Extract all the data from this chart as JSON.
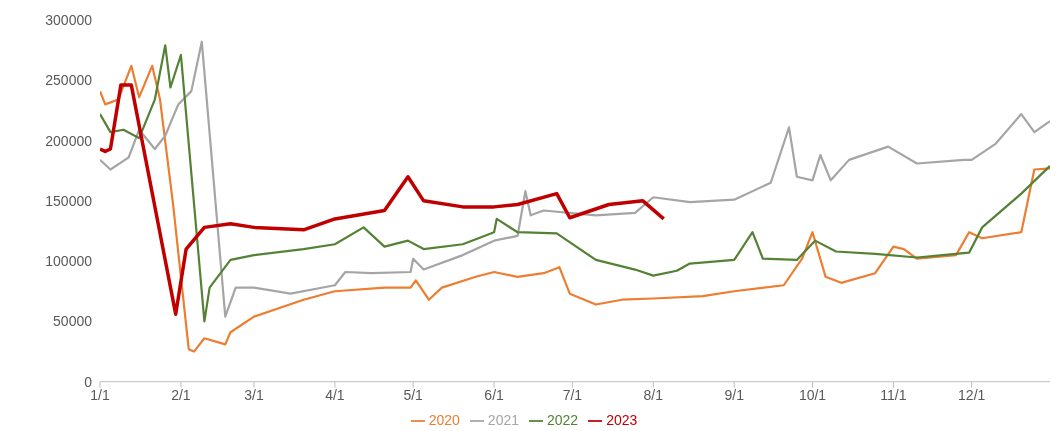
{
  "chart_data": {
    "type": "line",
    "legend": "bottom",
    "marker": "none",
    "line_style": "solid",
    "grid": false,
    "xlim": [
      "--01-01",
      "--12-31"
    ],
    "xticks": [
      {
        "value": "--01-01",
        "label": "1/1"
      },
      {
        "value": "--02-01",
        "label": "2/1"
      },
      {
        "value": "--03-01",
        "label": "3/1"
      },
      {
        "value": "--04-01",
        "label": "4/1"
      },
      {
        "value": "--05-01",
        "label": "5/1"
      },
      {
        "value": "--06-01",
        "label": "6/1"
      },
      {
        "value": "--07-01",
        "label": "7/1"
      },
      {
        "value": "--08-01",
        "label": "8/1"
      },
      {
        "value": "--09-01",
        "label": "9/1"
      },
      {
        "value": "--10-01",
        "label": "10/1"
      },
      {
        "value": "--11-01",
        "label": "11/1"
      },
      {
        "value": "--12-01",
        "label": "12/1"
      }
    ],
    "ylim": [
      0,
      300000
    ],
    "yticks": [
      0,
      50000,
      100000,
      150000,
      200000,
      250000,
      300000
    ],
    "series": [
      {
        "name": "2020",
        "color": "#ed7d31",
        "x": [
          "--01-01",
          "--01-03",
          "--01-08",
          "--01-13",
          "--01-16",
          "--01-21",
          "--01-24",
          "--01-29",
          "--02-04",
          "--02-06",
          "--02-10",
          "--02-18",
          "--02-20",
          "--03-01",
          "--03-20",
          "--04-01",
          "--04-20",
          "--04-30",
          "--05-02",
          "--05-07",
          "--05-12",
          "--05-25",
          "--06-01",
          "--06-10",
          "--06-20",
          "--06-26",
          "--06-30",
          "--07-10",
          "--07-20",
          "--08-01",
          "--08-20",
          "--09-01",
          "--09-20",
          "--09-27",
          "--10-01",
          "--10-06",
          "--10-12",
          "--10-25",
          "--11-01",
          "--11-05",
          "--11-10",
          "--11-25",
          "--11-30",
          "--12-05",
          "--12-20",
          "--12-25",
          "--12-31"
        ],
        "values": [
          241000,
          230000,
          234000,
          262000,
          236000,
          262000,
          234000,
          147000,
          27000,
          25000,
          36000,
          31000,
          41000,
          54000,
          68000,
          75000,
          78000,
          78000,
          84000,
          68000,
          78000,
          87000,
          91000,
          87000,
          90000,
          95000,
          73000,
          64000,
          68000,
          69000,
          71000,
          75000,
          80000,
          102000,
          124000,
          87000,
          82000,
          90000,
          112000,
          110000,
          102000,
          105000,
          124000,
          119000,
          124000,
          176000,
          177000
        ]
      },
      {
        "name": "2021",
        "color": "#a5a5a5",
        "x": [
          "--01-01",
          "--01-05",
          "--01-12",
          "--01-16",
          "--01-22",
          "--01-26",
          "--01-31",
          "--02-05",
          "--02-09",
          "--02-18",
          "--02-22",
          "--03-01",
          "--03-15",
          "--04-01",
          "--04-05",
          "--04-15",
          "--04-30",
          "--05-01",
          "--05-05",
          "--05-20",
          "--06-01",
          "--06-10",
          "--06-13",
          "--06-15",
          "--06-20",
          "--07-10",
          "--07-25",
          "--08-01",
          "--08-15",
          "--09-01",
          "--09-15",
          "--09-22",
          "--09-25",
          "--10-01",
          "--10-04",
          "--10-08",
          "--10-15",
          "--10-30",
          "--11-10",
          "--11-28",
          "--12-01",
          "--12-10",
          "--12-20",
          "--12-25",
          "--12-31"
        ],
        "values": [
          184000,
          176000,
          186000,
          209000,
          193000,
          204000,
          230000,
          241000,
          282000,
          54000,
          78000,
          78000,
          73000,
          80000,
          91000,
          90000,
          91000,
          102000,
          93000,
          105000,
          117000,
          121000,
          158000,
          138000,
          142000,
          138000,
          140000,
          153000,
          149000,
          151000,
          165000,
          211000,
          170000,
          167000,
          188000,
          167000,
          184000,
          195000,
          181000,
          184000,
          184000,
          197000,
          222000,
          207000,
          216000
        ]
      },
      {
        "name": "2022",
        "color": "#548235",
        "x": [
          "--01-01",
          "--01-05",
          "--01-10",
          "--01-16",
          "--01-22",
          "--01-26",
          "--01-28",
          "--02-01",
          "--02-10",
          "--02-12",
          "--02-20",
          "--03-01",
          "--03-20",
          "--04-01",
          "--04-12",
          "--04-20",
          "--04-29",
          "--05-05",
          "--05-20",
          "--06-01",
          "--06-02",
          "--06-10",
          "--06-25",
          "--07-10",
          "--07-25",
          "--08-01",
          "--08-10",
          "--08-15",
          "--09-01",
          "--09-08",
          "--09-12",
          "--09-25",
          "--10-02",
          "--10-10",
          "--10-25",
          "--11-10",
          "--11-30",
          "--12-05",
          "--12-20",
          "--12-31"
        ],
        "values": [
          222000,
          207000,
          209000,
          202000,
          234000,
          279000,
          244000,
          271000,
          50000,
          78000,
          101000,
          105000,
          110000,
          114000,
          128000,
          112000,
          117000,
          110000,
          114000,
          124000,
          135000,
          124000,
          123000,
          101000,
          93000,
          88000,
          92000,
          98000,
          101000,
          124000,
          102000,
          101000,
          117000,
          108000,
          106000,
          103000,
          107000,
          128000,
          156000,
          179000
        ]
      },
      {
        "name": "2023",
        "color": "#c00000",
        "x": [
          "--01-01",
          "--01-03",
          "--01-05",
          "--01-09",
          "--01-13",
          "--01-30",
          "--02-03",
          "--02-10",
          "--02-20",
          "--03-01",
          "--03-20",
          "--04-01",
          "--04-20",
          "--04-29",
          "--05-05",
          "--05-20",
          "--06-01",
          "--06-10",
          "--06-25",
          "--06-30",
          "--07-15",
          "--07-28",
          "--08-05"
        ],
        "values": [
          193000,
          191000,
          193000,
          246000,
          246000,
          56000,
          110000,
          128000,
          131000,
          128000,
          126000,
          135000,
          142000,
          170000,
          150000,
          145000,
          145000,
          147000,
          156000,
          136000,
          147000,
          150000,
          135000
        ]
      }
    ]
  }
}
